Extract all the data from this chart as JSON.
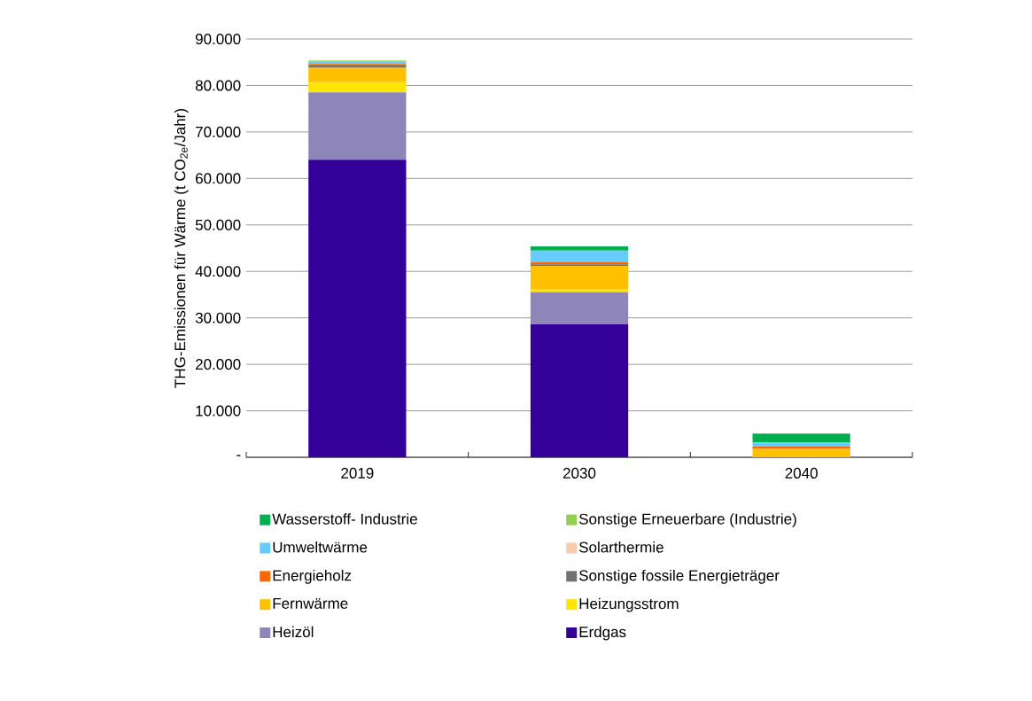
{
  "chart_data": {
    "type": "bar",
    "stacked": true,
    "ylabel": "THG-Emissionen für Wärme (t CO$_{2e}$/Jahr)",
    "categories": [
      "2019",
      "2030",
      "2040"
    ],
    "ylim": [
      0,
      90000
    ],
    "yticks": [
      {
        "value": 0,
        "label": "-"
      },
      {
        "value": 10000,
        "label": "10.000"
      },
      {
        "value": 20000,
        "label": "20.000"
      },
      {
        "value": 30000,
        "label": "30.000"
      },
      {
        "value": 40000,
        "label": "40.000"
      },
      {
        "value": 50000,
        "label": "50.000"
      },
      {
        "value": 60000,
        "label": "60.000"
      },
      {
        "value": 70000,
        "label": "70.000"
      },
      {
        "value": 80000,
        "label": "80.000"
      },
      {
        "value": 90000,
        "label": "90.000"
      }
    ],
    "grid": "y",
    "legend": "bottom",
    "series": [
      {
        "name": "Erdgas",
        "color": "#330099",
        "values": [
          64000,
          28600,
          0
        ]
      },
      {
        "name": "Heizöl",
        "color": "#8e86b8",
        "values": [
          14500,
          6900,
          0
        ]
      },
      {
        "name": "Heizungsstrom",
        "color": "#ffe600",
        "values": [
          2200,
          600,
          0
        ]
      },
      {
        "name": "Fernwärme",
        "color": "#ffc000",
        "values": [
          3100,
          5100,
          1800
        ]
      },
      {
        "name": "Sonstige fossile Energieträger",
        "color": "#767171",
        "values": [
          500,
          300,
          0
        ]
      },
      {
        "name": "Energieholz",
        "color": "#ff6600",
        "values": [
          300,
          500,
          500
        ]
      },
      {
        "name": "Solarthermie",
        "color": "#f8cbad",
        "values": [
          null,
          null,
          0
        ]
      },
      {
        "name": "Umweltwärme",
        "color": "#66ccff",
        "values": [
          500,
          2500,
          900
        ]
      },
      {
        "name": "Sonstige Erneuerbare (Industrie)",
        "color": "#92d050",
        "values": [
          300,
          0,
          0
        ]
      },
      {
        "name": "Wasserstoff- Industrie",
        "color": "#00b050",
        "values": [
          0,
          900,
          1900
        ]
      }
    ]
  }
}
